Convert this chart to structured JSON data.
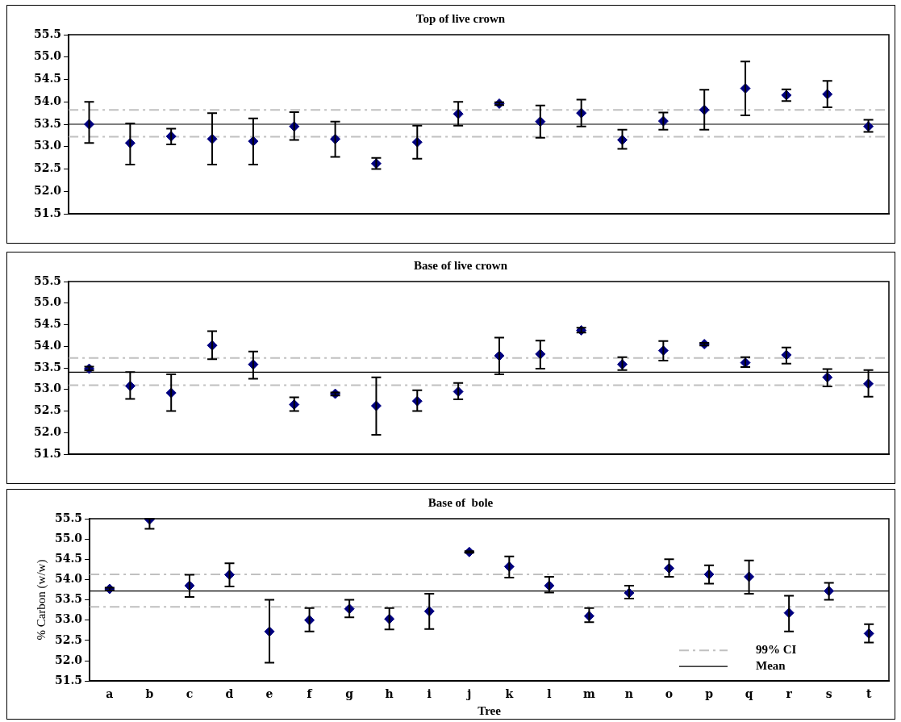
{
  "chart_data": [
    {
      "type": "scatter",
      "title": "Top of live crown",
      "marker": "diamond",
      "grid": false,
      "legend": false,
      "tick_labels": "y",
      "categories": [
        null,
        null,
        null,
        null,
        null,
        null,
        null,
        null,
        null,
        null,
        null,
        null,
        null,
        null,
        null,
        null,
        null,
        null,
        null,
        null
      ],
      "ylim": [
        51.5,
        55.5
      ],
      "yticks": [
        {
          "value": 51.5,
          "label": "51.5"
        },
        {
          "value": 52,
          "label": "52.0"
        },
        {
          "value": 52.5,
          "label": "52.5"
        },
        {
          "value": 53,
          "label": "53.0"
        },
        {
          "value": 53.5,
          "label": "53.5"
        },
        {
          "value": 54,
          "label": "54.0"
        },
        {
          "value": 54.5,
          "label": "54.5"
        },
        {
          "value": 55,
          "label": "55.0"
        },
        {
          "value": 55.5,
          "label": "55.5"
        }
      ],
      "series": [
        {
          "color": "#000080",
          "values": [
            53.5,
            53.08,
            53.23,
            53.17,
            53.12,
            53.45,
            53.17,
            52.62,
            53.1,
            53.73,
            53.96,
            53.56,
            53.75,
            53.15,
            53.57,
            53.82,
            54.3,
            54.15,
            54.17,
            53.45
          ],
          "errors": [
            [
              53.08,
              54.0
            ],
            [
              52.6,
              53.52
            ],
            [
              53.05,
              53.4
            ],
            [
              52.6,
              53.75
            ],
            [
              52.6,
              53.63
            ],
            [
              53.15,
              53.77
            ],
            [
              52.77,
              53.56
            ],
            [
              52.5,
              52.75
            ],
            [
              52.73,
              53.47
            ],
            [
              53.47,
              54.0
            ],
            [
              53.93,
              53.99
            ],
            [
              53.2,
              53.92
            ],
            [
              53.45,
              54.05
            ],
            [
              52.95,
              53.38
            ],
            [
              53.38,
              53.76
            ],
            [
              53.38,
              54.27
            ],
            [
              53.7,
              54.9
            ],
            [
              54.02,
              54.28
            ],
            [
              53.88,
              54.47
            ],
            [
              53.33,
              53.6
            ]
          ]
        }
      ],
      "ref_lines": [
        {
          "axis": "y",
          "value": 53.82,
          "label": null,
          "color": "#c0c0c0",
          "line_style": "dashed"
        },
        {
          "axis": "y",
          "value": 53.22,
          "label": null,
          "color": "#c0c0c0",
          "line_style": "dashed"
        },
        {
          "axis": "y",
          "value": 53.5,
          "label": null,
          "color": "#000000",
          "line_style": "solid"
        }
      ]
    },
    {
      "type": "scatter",
      "title": "Base of live crown",
      "marker": "diamond",
      "grid": false,
      "legend": false,
      "tick_labels": "y",
      "categories": [
        null,
        null,
        null,
        null,
        null,
        null,
        null,
        null,
        null,
        null,
        null,
        null,
        null,
        null,
        null,
        null,
        null,
        null,
        null,
        null
      ],
      "ylim": [
        51.5,
        55.5
      ],
      "yticks": [
        {
          "value": 51.5,
          "label": "51.5"
        },
        {
          "value": 52,
          "label": "52.0"
        },
        {
          "value": 52.5,
          "label": "52.5"
        },
        {
          "value": 53,
          "label": "53.0"
        },
        {
          "value": 53.5,
          "label": "53.5"
        },
        {
          "value": 54,
          "label": "54.0"
        },
        {
          "value": 54.5,
          "label": "54.5"
        },
        {
          "value": 55,
          "label": "55.0"
        },
        {
          "value": 55.5,
          "label": "55.5"
        }
      ],
      "series": [
        {
          "color": "#000080",
          "values": [
            53.48,
            53.08,
            52.92,
            54.02,
            53.58,
            52.65,
            52.9,
            52.62,
            52.73,
            52.95,
            53.78,
            53.82,
            54.37,
            53.58,
            53.9,
            54.05,
            53.62,
            53.8,
            53.28,
            53.13
          ],
          "errors": [
            [
              53.44,
              53.53
            ],
            [
              52.78,
              53.4
            ],
            [
              52.5,
              53.35
            ],
            [
              53.7,
              54.35
            ],
            [
              53.25,
              53.88
            ],
            [
              52.5,
              52.82
            ],
            [
              52.86,
              52.93
            ],
            [
              51.95,
              53.28
            ],
            [
              52.5,
              52.98
            ],
            [
              52.77,
              53.15
            ],
            [
              53.35,
              54.2
            ],
            [
              53.48,
              54.13
            ],
            [
              54.32,
              54.43
            ],
            [
              53.45,
              53.75
            ],
            [
              53.67,
              54.12
            ],
            [
              54.02,
              54.08
            ],
            [
              53.52,
              53.75
            ],
            [
              53.6,
              53.97
            ],
            [
              53.07,
              53.47
            ],
            [
              52.83,
              53.45
            ]
          ]
        }
      ],
      "ref_lines": [
        {
          "axis": "y",
          "value": 53.73,
          "label": null,
          "color": "#c0c0c0",
          "line_style": "dashed"
        },
        {
          "axis": "y",
          "value": 53.1,
          "label": null,
          "color": "#c0c0c0",
          "line_style": "dashed"
        },
        {
          "axis": "y",
          "value": 53.4,
          "label": null,
          "color": "#000000",
          "line_style": "solid"
        }
      ]
    },
    {
      "type": "scatter",
      "title": "Base of  bole",
      "xlabel": "Tree",
      "ylabel": "% Carbon (w/w)",
      "marker": "diamond",
      "grid": false,
      "legend": "bottom right",
      "categories": [
        "a",
        "b",
        "c",
        "d",
        "e",
        "f",
        "g",
        "h",
        "i",
        "j",
        "k",
        "l",
        "m",
        "n",
        "o",
        "p",
        "q",
        "r",
        "s",
        "t"
      ],
      "ylim": [
        51.5,
        55.5
      ],
      "yticks": [
        {
          "value": 51.5,
          "label": "51.5"
        },
        {
          "value": 52,
          "label": "52.0"
        },
        {
          "value": 52.5,
          "label": "52.5"
        },
        {
          "value": 53,
          "label": "53.0"
        },
        {
          "value": 53.5,
          "label": "53.5"
        },
        {
          "value": 54,
          "label": "54.0"
        },
        {
          "value": 54.5,
          "label": "54.5"
        },
        {
          "value": 55,
          "label": "55.0"
        },
        {
          "value": 55.5,
          "label": "55.5"
        }
      ],
      "series": [
        {
          "color": "#000080",
          "values": [
            53.77,
            55.48,
            53.85,
            54.12,
            52.72,
            53.0,
            53.28,
            53.03,
            53.22,
            54.68,
            54.32,
            53.85,
            53.1,
            53.67,
            54.28,
            54.13,
            54.07,
            53.18,
            53.72,
            52.67
          ],
          "errors": [
            [
              53.73,
              53.8
            ],
            [
              55.25,
              55.5
            ],
            [
              53.57,
              54.12
            ],
            [
              53.83,
              54.4
            ],
            [
              51.95,
              53.5
            ],
            [
              52.72,
              53.3
            ],
            [
              53.07,
              53.5
            ],
            [
              52.77,
              53.3
            ],
            [
              52.78,
              53.65
            ],
            [
              54.66,
              54.7
            ],
            [
              54.05,
              54.57
            ],
            [
              53.68,
              54.07
            ],
            [
              52.95,
              53.3
            ],
            [
              53.53,
              53.85
            ],
            [
              54.07,
              54.5
            ],
            [
              53.9,
              54.35
            ],
            [
              53.65,
              54.47
            ],
            [
              52.72,
              53.6
            ],
            [
              53.5,
              53.92
            ],
            [
              52.45,
              52.9
            ]
          ]
        }
      ],
      "ref_lines": [
        {
          "axis": "y",
          "value": 54.13,
          "label": "99% CI",
          "color": "#c0c0c0",
          "line_style": "dashed"
        },
        {
          "axis": "y",
          "value": 53.33,
          "label": null,
          "color": "#c0c0c0",
          "line_style": "dashed"
        },
        {
          "axis": "y",
          "value": 53.72,
          "label": "Mean",
          "color": "#000000",
          "line_style": "solid"
        }
      ]
    }
  ]
}
